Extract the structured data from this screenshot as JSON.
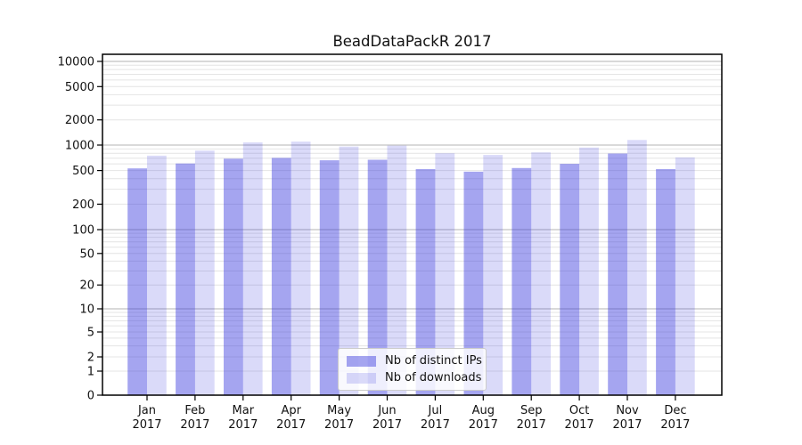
{
  "title": "BeadDataPackR 2017",
  "chart_data": {
    "type": "bar",
    "title": "BeadDataPackR 2017",
    "categories": [
      "Jan",
      "Feb",
      "Mar",
      "Apr",
      "May",
      "Jun",
      "Jul",
      "Aug",
      "Sep",
      "Oct",
      "Nov",
      "Dec"
    ],
    "category_year_label": "2017",
    "series": [
      {
        "name": "Nb of distinct IPs",
        "color": "rgba(50,50,220,0.44)",
        "values": [
          530,
          605,
          690,
          705,
          660,
          670,
          520,
          485,
          535,
          600,
          795,
          520
        ]
      },
      {
        "name": "Nb of downloads",
        "color": "rgba(50,50,220,0.18)",
        "values": [
          750,
          860,
          1075,
          1100,
          960,
          985,
          800,
          765,
          820,
          935,
          1150,
          715
        ]
      }
    ],
    "xlabel": "",
    "ylabel": "",
    "yscale": "symlog",
    "ylim": [
      0,
      12500
    ],
    "y_ticks": [
      0,
      1,
      2,
      5,
      10,
      20,
      50,
      100,
      200,
      500,
      1000,
      2000,
      5000,
      10000
    ],
    "grid": true,
    "legend_position": "lower center",
    "colors": {
      "background": "#ffffff",
      "axis": "#000000",
      "grid_major": "#b3b3b3",
      "grid_minor": "#e4e4e4",
      "text": "#111111"
    }
  }
}
